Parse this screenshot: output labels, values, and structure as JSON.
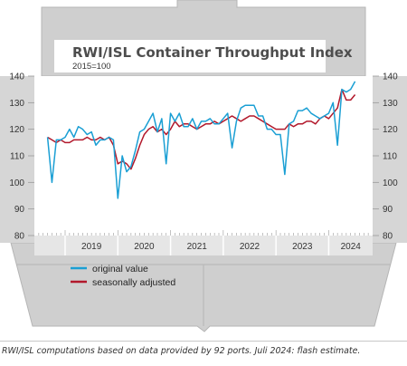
{
  "chart_data": {
    "type": "line",
    "title": "RWI/ISL Container Throughput Index",
    "subtitle": "2015=100",
    "ylim": [
      80,
      140
    ],
    "yticks": [
      "80",
      "90",
      "100",
      "110",
      "120",
      "130",
      "140"
    ],
    "xlim": [
      "2018-06",
      "2024-11"
    ],
    "year_labels": [
      "2019",
      "2020",
      "2021",
      "2022",
      "2023",
      "2024"
    ],
    "legend": {
      "position": "bottom-left"
    },
    "grid": false,
    "x": [
      "2018-09",
      "2018-10",
      "2018-11",
      "2018-12",
      "2019-01",
      "2019-02",
      "2019-03",
      "2019-04",
      "2019-05",
      "2019-06",
      "2019-07",
      "2019-08",
      "2019-09",
      "2019-10",
      "2019-11",
      "2019-12",
      "2020-01",
      "2020-02",
      "2020-03",
      "2020-04",
      "2020-05",
      "2020-06",
      "2020-07",
      "2020-08",
      "2020-09",
      "2020-10",
      "2020-11",
      "2020-12",
      "2021-01",
      "2021-02",
      "2021-03",
      "2021-04",
      "2021-05",
      "2021-06",
      "2021-07",
      "2021-08",
      "2021-09",
      "2021-10",
      "2021-11",
      "2021-12",
      "2022-01",
      "2022-02",
      "2022-03",
      "2022-04",
      "2022-05",
      "2022-06",
      "2022-07",
      "2022-08",
      "2022-09",
      "2022-10",
      "2022-11",
      "2022-12",
      "2023-01",
      "2023-02",
      "2023-03",
      "2023-04",
      "2023-05",
      "2023-06",
      "2023-07",
      "2023-08",
      "2023-09",
      "2023-10",
      "2023-11",
      "2023-12",
      "2024-01",
      "2024-02",
      "2024-03",
      "2024-04",
      "2024-05",
      "2024-06",
      "2024-07"
    ],
    "series": [
      {
        "name": "original value",
        "color": "#1a9fd4",
        "values": [
          117,
          100,
          116,
          116,
          117,
          120,
          117,
          121,
          120,
          118,
          119,
          114,
          116,
          116,
          117,
          116,
          94,
          110,
          104,
          106,
          112,
          119,
          120,
          123,
          126,
          119,
          124,
          107,
          126,
          123,
          126,
          121,
          121,
          124,
          120,
          123,
          123,
          124,
          122,
          122,
          124,
          126,
          113,
          123,
          128,
          129,
          129,
          129,
          125,
          125,
          120,
          120,
          118,
          118,
          103,
          122,
          123,
          127,
          127,
          128,
          126,
          125,
          124,
          125,
          126,
          130,
          114,
          135,
          134,
          135,
          138
        ]
      },
      {
        "name": "seasonally adjusted",
        "color": "#b2182b",
        "values": [
          117,
          116,
          115,
          116,
          115,
          115,
          116,
          116,
          116,
          117,
          116,
          116,
          117,
          116,
          117,
          114,
          107,
          108,
          107,
          105,
          109,
          114,
          118,
          120,
          121,
          119,
          120,
          118,
          120,
          123,
          121,
          122,
          122,
          121,
          120,
          121,
          122,
          122,
          123,
          122,
          123,
          124,
          125,
          124,
          123,
          124,
          125,
          125,
          124,
          123,
          122,
          121,
          120,
          120,
          120,
          122,
          121,
          122,
          122,
          123,
          123,
          122,
          124,
          125,
          124,
          126,
          128,
          135,
          131,
          131,
          133
        ]
      }
    ]
  },
  "footnote": "RWI/ISL computations based on data provided by 92 ports. Juli 2024: flash estimate.",
  "colors": {
    "ship_hull": "#cfcfcf",
    "ship_outline": "#b5b5b5",
    "plot_area": "#ffffff",
    "year_band": "#e6e6e6"
  }
}
